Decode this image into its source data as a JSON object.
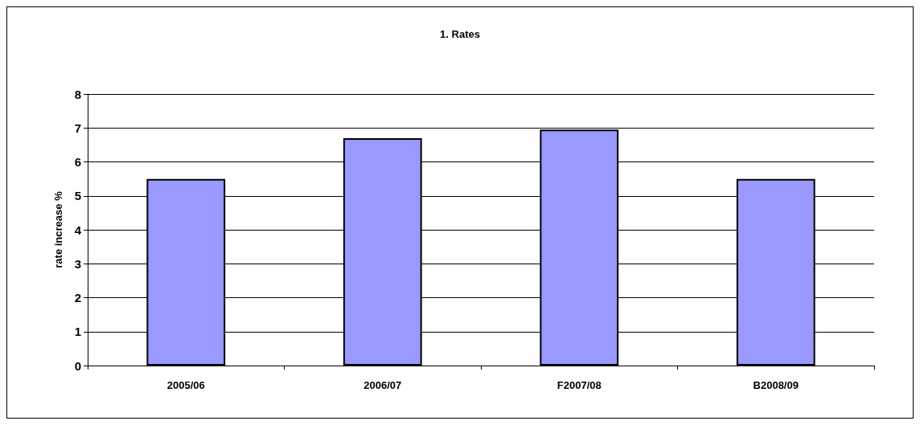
{
  "chart_data": {
    "type": "bar",
    "title": "1. Rates",
    "ylabel": "rate increase %",
    "categories": [
      "2005/06",
      "2006/07",
      "F2007/08",
      "B2008/09"
    ],
    "values": [
      5.5,
      6.7,
      6.95,
      5.5
    ],
    "color": "#9999ff",
    "ylim": [
      0,
      8
    ],
    "yticks": [
      0,
      1,
      2,
      3,
      4,
      5,
      6,
      7,
      8
    ],
    "grid": "y"
  }
}
